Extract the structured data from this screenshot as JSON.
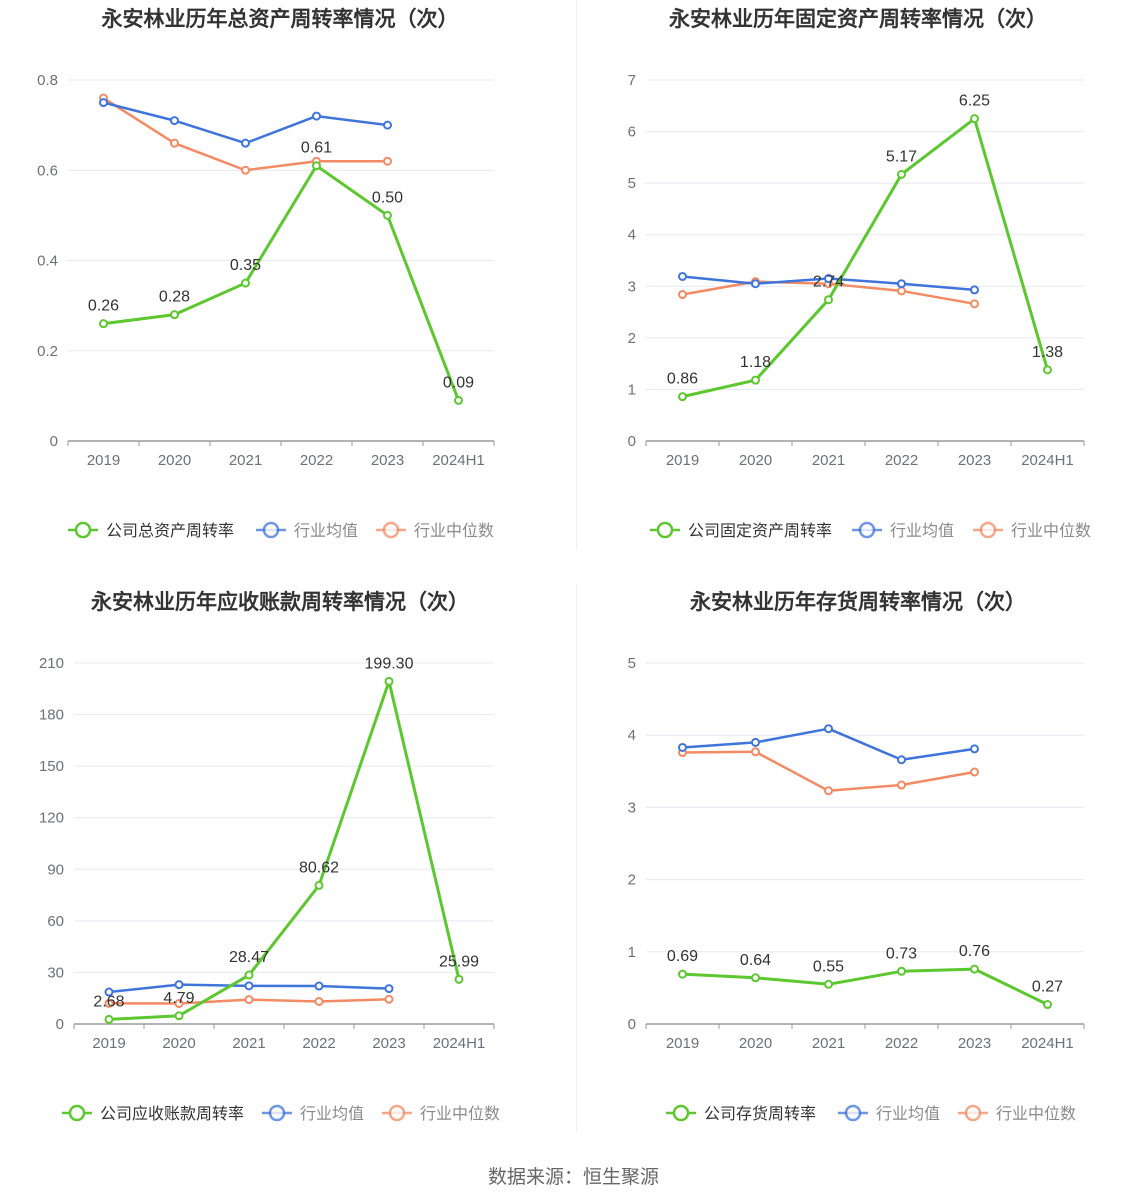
{
  "source_note": "数据来源：恒生聚源",
  "colors": {
    "company": "#5cc72f",
    "avg": "#3f74db",
    "median": "#f28a64",
    "grid": "#e6e8f0",
    "axis": "#9a9a9a",
    "tick_text": "#6e7079",
    "label_text": "#333333",
    "title_text": "#333333"
  },
  "chart_data": [
    {
      "type": "line",
      "title": "永安林业历年总资产周转率情况（次）",
      "categories": [
        "2019",
        "2020",
        "2021",
        "2022",
        "2023",
        "2024H1"
      ],
      "ylim": [
        0,
        0.8
      ],
      "yticks": [
        0,
        0.2,
        0.4,
        0.6,
        0.8
      ],
      "ytick_labels": [
        "0",
        "0.2",
        "0.4",
        "0.6",
        "0.8"
      ],
      "legend_position": "bottom",
      "grid": true,
      "series": [
        {
          "name": "公司总资产周转率",
          "role": "company",
          "values": [
            0.26,
            0.28,
            0.35,
            0.61,
            0.5,
            0.09
          ],
          "labels": [
            "0.26",
            "0.28",
            "0.35",
            "0.61",
            "0.50",
            "0.09"
          ]
        },
        {
          "name": "行业均值",
          "role": "avg",
          "values": [
            0.75,
            0.71,
            0.66,
            0.72,
            0.7,
            null
          ]
        },
        {
          "name": "行业中位数",
          "role": "median",
          "values": [
            0.76,
            0.66,
            0.6,
            0.62,
            0.62,
            null
          ]
        }
      ]
    },
    {
      "type": "line",
      "title": "永安林业历年固定资产周转率情况（次）",
      "categories": [
        "2019",
        "2020",
        "2021",
        "2022",
        "2023",
        "2024H1"
      ],
      "ylim": [
        0,
        7
      ],
      "yticks": [
        0,
        1,
        2,
        3,
        4,
        5,
        6,
        7
      ],
      "ytick_labels": [
        "0",
        "1",
        "2",
        "3",
        "4",
        "5",
        "6",
        "7"
      ],
      "legend_position": "bottom",
      "grid": true,
      "series": [
        {
          "name": "公司固定资产周转率",
          "role": "company",
          "values": [
            0.86,
            1.18,
            2.74,
            5.17,
            6.25,
            1.38
          ],
          "labels": [
            "0.86",
            "1.18",
            "2.74",
            "5.17",
            "6.25",
            "1.38"
          ]
        },
        {
          "name": "行业均值",
          "role": "avg",
          "values": [
            3.19,
            3.05,
            3.15,
            3.05,
            2.93,
            null
          ]
        },
        {
          "name": "行业中位数",
          "role": "median",
          "values": [
            2.84,
            3.09,
            3.05,
            2.91,
            2.66,
            null
          ]
        }
      ]
    },
    {
      "type": "line",
      "title": "永安林业历年应收账款周转率情况（次）",
      "categories": [
        "2019",
        "2020",
        "2021",
        "2022",
        "2023",
        "2024H1"
      ],
      "ylim": [
        0,
        210
      ],
      "yticks": [
        0,
        30,
        60,
        90,
        120,
        150,
        180,
        210
      ],
      "ytick_labels": [
        "0",
        "30",
        "60",
        "90",
        "120",
        "150",
        "180",
        "210"
      ],
      "legend_position": "bottom",
      "grid": true,
      "series": [
        {
          "name": "公司应收账款周转率",
          "role": "company",
          "values": [
            2.68,
            4.79,
            28.47,
            80.62,
            199.3,
            25.99
          ],
          "labels": [
            "2.68",
            "4.79",
            "28.47",
            "80.62",
            "199.30",
            "25.99"
          ]
        },
        {
          "name": "行业均值",
          "role": "avg",
          "values": [
            18.6,
            22.9,
            22.2,
            22.1,
            20.6,
            null
          ]
        },
        {
          "name": "行业中位数",
          "role": "median",
          "values": [
            12.0,
            11.9,
            14.2,
            13.1,
            14.4,
            null
          ]
        }
      ]
    },
    {
      "type": "line",
      "title": "永安林业历年存货周转率情况（次）",
      "categories": [
        "2019",
        "2020",
        "2021",
        "2022",
        "2023",
        "2024H1"
      ],
      "ylim": [
        0,
        5
      ],
      "yticks": [
        0,
        1,
        2,
        3,
        4,
        5
      ],
      "ytick_labels": [
        "0",
        "1",
        "2",
        "3",
        "4",
        "5"
      ],
      "legend_position": "bottom",
      "grid": true,
      "series": [
        {
          "name": "公司存货周转率",
          "role": "company",
          "values": [
            0.69,
            0.64,
            0.55,
            0.73,
            0.76,
            0.27
          ],
          "labels": [
            "0.69",
            "0.64",
            "0.55",
            "0.73",
            "0.76",
            "0.27"
          ]
        },
        {
          "name": "行业均值",
          "role": "avg",
          "values": [
            3.83,
            3.9,
            4.09,
            3.66,
            3.81,
            null
          ]
        },
        {
          "name": "行业中位数",
          "role": "median",
          "values": [
            3.76,
            3.77,
            3.23,
            3.31,
            3.49,
            null
          ]
        }
      ]
    }
  ]
}
